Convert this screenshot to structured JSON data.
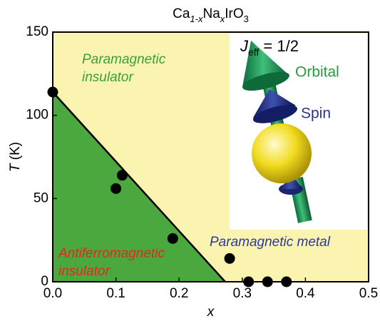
{
  "chart_data": {
    "type": "scatter",
    "title": [
      "Ca",
      "1-x",
      "Na",
      "x",
      "IrO",
      "3"
    ],
    "x_label": "x",
    "y_label": [
      "T",
      " (K)"
    ],
    "x": [
      0,
      0.1,
      0.11,
      0.19,
      0.28,
      0.31,
      0.34,
      0.37
    ],
    "values": [
      114,
      56,
      64,
      26,
      14,
      0,
      0,
      0
    ],
    "color": "#000000",
    "boundary": {
      "x": [
        0,
        0.273
      ],
      "y": [
        114,
        0
      ],
      "color": "#000000"
    },
    "region_colors": {
      "ordered": "#4aa83e",
      "background": "#faf4b0"
    },
    "xlim": [
      0,
      0.5
    ],
    "xticks": [
      {
        "value": 0,
        "label": "0.0"
      },
      0.1,
      0.2,
      0.3,
      0.4,
      0.5
    ],
    "ylim": [
      0,
      150
    ],
    "yticks": [
      0,
      50,
      100,
      150
    ],
    "annotations": [
      {
        "lines": [
          "Paramagnetic",
          "insulator"
        ],
        "color": "#3aa03a"
      },
      {
        "lines": [
          "Antiferromagnetic",
          "insulator"
        ],
        "color": "#e02a1a"
      },
      {
        "lines": [
          "Paramagnetic metal"
        ],
        "color": "#2a3a9a"
      }
    ],
    "inset": {
      "title": [
        "J",
        "eff",
        " = 1/2"
      ],
      "orbital": "Orbital",
      "spin": "Spin"
    }
  }
}
